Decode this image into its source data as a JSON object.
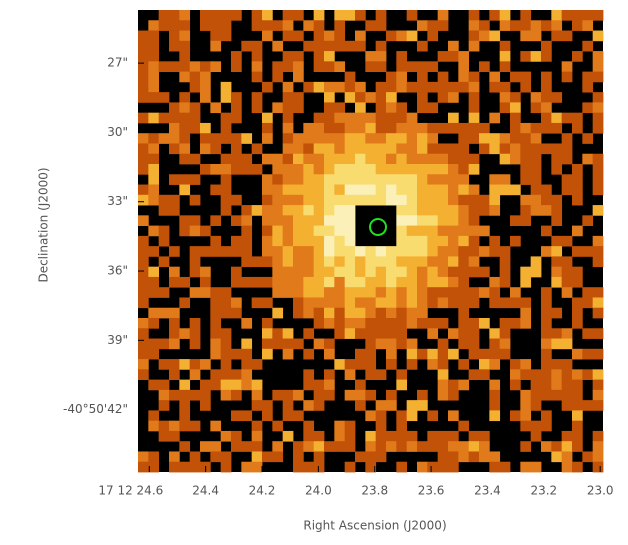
{
  "chart_data": {
    "type": "image",
    "x_label": "Right Ascension (J2000)",
    "y_label": "Declination (J2000)",
    "xlim": [
      24.64,
      22.99
    ],
    "ylim": [
      44.7,
      24.7
    ],
    "xticks": [
      {
        "value": 24.6,
        "label": "17 12 24.6"
      },
      {
        "value": 24.4,
        "label": "24.4"
      },
      {
        "value": 24.2,
        "label": "24.2"
      },
      {
        "value": 24.0,
        "label": "24.0"
      },
      {
        "value": 23.8,
        "label": "23.8"
      },
      {
        "value": 23.6,
        "label": "23.6"
      },
      {
        "value": 23.4,
        "label": "23.4"
      },
      {
        "value": 23.2,
        "label": "23.2"
      },
      {
        "value": 23.0,
        "label": "23.0"
      }
    ],
    "yticks": [
      {
        "value": 27,
        "label": "27\""
      },
      {
        "value": 30,
        "label": "30\""
      },
      {
        "value": 33,
        "label": "33\""
      },
      {
        "value": 36,
        "label": "36\""
      },
      {
        "value": 39,
        "label": "39\""
      },
      {
        "value": 42,
        "label": "-40°50'42\""
      }
    ]
  }
}
